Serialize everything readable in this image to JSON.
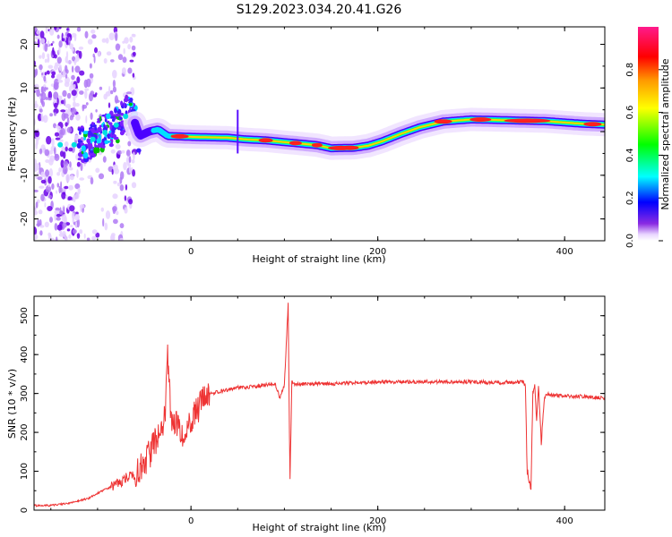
{
  "title": "S129.2023.034.20.41.G26",
  "chart_data": [
    {
      "type": "heatmap",
      "name": "spectrogram",
      "xlabel": "Height of straight line (km)",
      "ylabel": "Frequency (Hz)",
      "xlim": [
        -168,
        443
      ],
      "ylim": [
        -25,
        24
      ],
      "xticks": [
        0,
        200,
        400
      ],
      "yticks": [
        -20,
        -10,
        0,
        10,
        20
      ],
      "ridge": {
        "x": [
          -165,
          -140,
          -120,
          -110,
          -100,
          -90,
          -80,
          -72,
          -66,
          -60,
          -55,
          -45,
          -35,
          -25,
          0,
          40,
          60,
          80,
          100,
          120,
          135,
          150,
          175,
          190,
          205,
          225,
          245,
          270,
          300,
          340,
          380,
          420,
          443
        ],
        "freq": [
          -4,
          -3,
          -3,
          -2.5,
          -1,
          0,
          1.5,
          3,
          4.5,
          2,
          -1,
          0,
          0.5,
          -1,
          -1.2,
          -1.4,
          -1.8,
          -2,
          -2.4,
          -2.8,
          -3.1,
          -3.8,
          -3.7,
          -3.2,
          -2.2,
          -0.5,
          1,
          2.3,
          2.8,
          2.6,
          2.4,
          1.8,
          1.6
        ]
      },
      "colorbar": {
        "label": "Normalized spectral amplitude",
        "range": [
          0,
          1
        ],
        "ticks": [
          0.0,
          0.2,
          0.4,
          0.6,
          0.8
        ],
        "tick_labels": [
          "0.0",
          "0.2",
          "0.4",
          "0.6",
          "0.8"
        ]
      }
    },
    {
      "type": "line",
      "name": "snr",
      "xlabel": "Height of straight line (km)",
      "ylabel": "SNR (10 * v/v)",
      "xlim": [
        -168,
        443
      ],
      "ylim": [
        0,
        550
      ],
      "xticks": [
        0,
        200,
        400
      ],
      "yticks": [
        0,
        100,
        200,
        300,
        400,
        500
      ],
      "color": "#ee3333",
      "series": [
        {
          "name": "SNR",
          "x": [
            -168,
            -150,
            -130,
            -110,
            -95,
            -80,
            -60,
            -45,
            -35,
            -28,
            -25,
            -22,
            -20,
            -10,
            0,
            10,
            20,
            30,
            50,
            70,
            90,
            95,
            100,
            104,
            106,
            108,
            112,
            120,
            150,
            200,
            250,
            300,
            330,
            355,
            358,
            360,
            362,
            364,
            366,
            368,
            370,
            372,
            375,
            378,
            380,
            390,
            420,
            443
          ],
          "y": [
            12,
            12,
            18,
            30,
            50,
            65,
            95,
            140,
            190,
            240,
            400,
            250,
            230,
            200,
            230,
            270,
            300,
            305,
            315,
            318,
            325,
            290,
            320,
            530,
            70,
            330,
            322,
            325,
            325,
            330,
            330,
            330,
            328,
            330,
            320,
            100,
            60,
            62,
            300,
            320,
            230,
            320,
            180,
            280,
            300,
            295,
            292,
            288
          ]
        }
      ]
    }
  ]
}
